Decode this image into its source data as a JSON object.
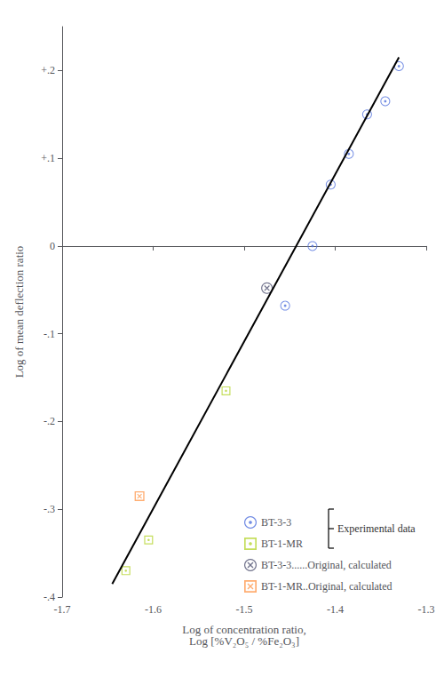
{
  "chart_data": {
    "type": "scatter",
    "xlabel": "Log of concentration ratio,\nLog [%V₂O₅ / %Fe₂O₃]",
    "ylabel": "Log of mean deflection ratio",
    "xlim": [
      -1.7,
      -1.3
    ],
    "ylim": [
      -0.4,
      0.25
    ],
    "xticks": [
      -1.7,
      -1.6,
      -1.5,
      -1.4,
      -1.3
    ],
    "yticks": [
      {
        "value": -0.4,
        "label": "-.4"
      },
      {
        "value": -0.3,
        "label": "-.3"
      },
      {
        "value": -0.2,
        "label": "-.2"
      },
      {
        "value": -0.1,
        "label": "-.1"
      },
      0,
      {
        "value": 0.1,
        "label": "+.1"
      },
      {
        "value": 0.2,
        "label": "+.2"
      }
    ],
    "grid": false,
    "legend": "lower right",
    "annotation": "Experimental data",
    "series": [
      {
        "type": "line",
        "color": "#000000",
        "x": [
          -1.645,
          -1.33
        ],
        "values": [
          -0.385,
          0.215
        ]
      },
      {
        "name": "BT-3-3",
        "marker": "circle_dot",
        "x": [
          -1.455,
          -1.425,
          -1.405,
          -1.385,
          -1.365,
          -1.345,
          -1.33
        ],
        "values": [
          -0.068,
          0.0,
          0.07,
          0.105,
          0.15,
          0.165,
          0.205
        ]
      },
      {
        "name": "BT-1-MR",
        "marker": "square_dot",
        "x": [
          -1.63,
          -1.605,
          -1.52
        ],
        "values": [
          -0.37,
          -0.335,
          -0.165
        ]
      },
      {
        "name": "BT-3-3......Original, calculated",
        "marker": "circle_x",
        "x": [
          -1.475
        ],
        "values": [
          -0.048
        ]
      },
      {
        "name": "BT-1-MR..Original, calculated",
        "marker": "square_x",
        "x": [
          -1.615
        ],
        "values": [
          -0.285
        ]
      }
    ]
  }
}
